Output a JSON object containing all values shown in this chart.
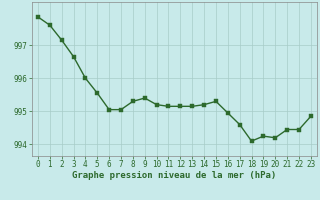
{
  "x": [
    0,
    1,
    2,
    3,
    4,
    5,
    6,
    7,
    8,
    9,
    10,
    11,
    12,
    13,
    14,
    15,
    16,
    17,
    18,
    19,
    20,
    21,
    22,
    23
  ],
  "y": [
    997.85,
    997.6,
    997.15,
    996.65,
    996.0,
    995.55,
    995.05,
    995.05,
    995.3,
    995.4,
    995.2,
    995.15,
    995.15,
    995.15,
    995.2,
    995.3,
    994.95,
    994.6,
    994.1,
    994.25,
    994.2,
    994.45,
    994.45,
    994.85
  ],
  "line_color": "#2d6a2d",
  "marker_color": "#2d6a2d",
  "bg_color": "#c8eaea",
  "grid_color": "#a8ccc8",
  "xlabel": "Graphe pression niveau de la mer (hPa)",
  "xlim": [
    -0.5,
    23.5
  ],
  "ylim": [
    993.65,
    998.3
  ],
  "yticks": [
    994,
    995,
    996,
    997
  ],
  "xticks": [
    0,
    1,
    2,
    3,
    4,
    5,
    6,
    7,
    8,
    9,
    10,
    11,
    12,
    13,
    14,
    15,
    16,
    17,
    18,
    19,
    20,
    21,
    22,
    23
  ],
  "tick_fontsize": 5.5,
  "xlabel_fontsize": 6.5,
  "marker_size": 2.2,
  "line_width": 1.0
}
